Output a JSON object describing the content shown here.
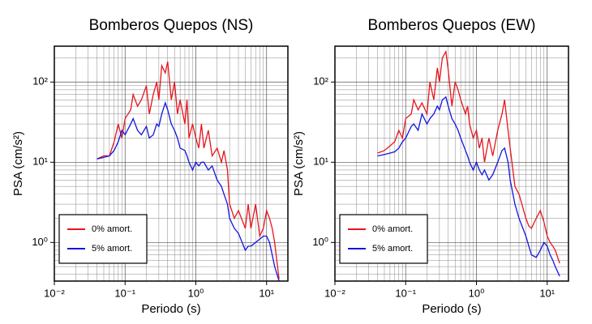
{
  "chart_data": [
    {
      "type": "line",
      "title": "Bomberos Quepos (NS)",
      "x_label": "Periodo (s)",
      "y_label": "PSA (cm/s²)",
      "xlog": true,
      "ylog": true,
      "grid": true,
      "legend": "lower left",
      "xlim": [
        0.01,
        20
      ],
      "ylim": [
        0.33,
        280
      ],
      "xticks": [
        {
          "value": 0.01,
          "label": "10⁻²"
        },
        {
          "value": 0.1,
          "label": "10⁻¹"
        },
        {
          "value": 1,
          "label": "10⁰"
        },
        {
          "value": 10,
          "label": "10¹"
        }
      ],
      "yticks": [
        {
          "value": 1,
          "label": "10⁰"
        },
        {
          "value": 10,
          "label": "10¹"
        },
        {
          "value": 100,
          "label": "10²"
        }
      ],
      "x": [
        0.04,
        0.05,
        0.06,
        0.07,
        0.08,
        0.09,
        0.1,
        0.12,
        0.13,
        0.15,
        0.17,
        0.2,
        0.22,
        0.25,
        0.28,
        0.3,
        0.33,
        0.37,
        0.4,
        0.45,
        0.5,
        0.55,
        0.6,
        0.7,
        0.75,
        0.8,
        0.9,
        1.0,
        1.1,
        1.2,
        1.3,
        1.5,
        1.7,
        2.0,
        2.3,
        2.5,
        2.8,
        3.0,
        3.5,
        4,
        5,
        5.5,
        6,
        7,
        8,
        9,
        10,
        11,
        12,
        13,
        15
      ],
      "series": [
        {
          "name": "0% amort.",
          "color": "#e8141c",
          "values": [
            11,
            12,
            12,
            18,
            30,
            20,
            35,
            45,
            70,
            50,
            60,
            90,
            40,
            70,
            100,
            60,
            160,
            130,
            180,
            60,
            100,
            40,
            60,
            30,
            60,
            20,
            30,
            20,
            15,
            30,
            15,
            25,
            12,
            15,
            10,
            14,
            8,
            3,
            2,
            2.5,
            1.5,
            3,
            1.5,
            3,
            1.2,
            1.5,
            2.5,
            2.0,
            1.5,
            1.0,
            0.35
          ]
        },
        {
          "name": "5% amort.",
          "color": "#1414e0",
          "values": [
            11,
            11.5,
            12,
            14,
            18,
            25,
            22,
            30,
            35,
            25,
            22,
            28,
            20,
            22,
            30,
            28,
            40,
            55,
            45,
            30,
            25,
            20,
            15,
            14,
            12,
            10,
            8,
            10,
            9,
            10,
            10,
            8,
            9,
            6,
            5,
            4,
            3,
            2,
            1.5,
            1.3,
            0.8,
            0.9,
            0.9,
            1.0,
            1.1,
            1.2,
            1.2,
            1.0,
            0.7,
            0.5,
            0.33
          ]
        }
      ]
    },
    {
      "type": "line",
      "title": "Bomberos Quepos (EW)",
      "x_label": "Periodo (s)",
      "y_label": "PSA (cm/s²)",
      "xlog": true,
      "ylog": true,
      "grid": true,
      "legend": "lower left",
      "xlim": [
        0.01,
        20
      ],
      "ylim": [
        0.33,
        280
      ],
      "xticks": [
        {
          "value": 0.01,
          "label": "10⁻²"
        },
        {
          "value": 0.1,
          "label": "10⁻¹"
        },
        {
          "value": 1,
          "label": "10⁰"
        },
        {
          "value": 10,
          "label": "10¹"
        }
      ],
      "yticks": [
        {
          "value": 1,
          "label": "10⁰"
        },
        {
          "value": 10,
          "label": "10¹"
        },
        {
          "value": 100,
          "label": "10²"
        }
      ],
      "x": [
        0.04,
        0.05,
        0.06,
        0.07,
        0.08,
        0.09,
        0.1,
        0.12,
        0.13,
        0.15,
        0.17,
        0.2,
        0.22,
        0.25,
        0.28,
        0.3,
        0.33,
        0.37,
        0.4,
        0.45,
        0.5,
        0.55,
        0.6,
        0.7,
        0.75,
        0.8,
        0.9,
        1.0,
        1.1,
        1.2,
        1.3,
        1.5,
        1.7,
        2.0,
        2.3,
        2.5,
        2.8,
        3.0,
        3.5,
        4,
        5,
        5.5,
        6,
        7,
        8,
        9,
        10,
        11,
        12,
        13,
        15
      ],
      "series": [
        {
          "name": "0% amort.",
          "color": "#e8141c",
          "values": [
            13,
            14,
            16,
            18,
            25,
            20,
            35,
            40,
            60,
            45,
            55,
            40,
            100,
            60,
            150,
            100,
            200,
            240,
            140,
            50,
            100,
            80,
            60,
            40,
            50,
            30,
            20,
            25,
            15,
            20,
            10,
            20,
            12,
            25,
            40,
            60,
            25,
            15,
            5,
            4,
            2,
            1.6,
            1.5,
            2,
            2.5,
            1.8,
            1.2,
            1.0,
            0.9,
            0.8,
            0.55
          ]
        },
        {
          "name": "5% amort.",
          "color": "#1414e0",
          "values": [
            12,
            12.5,
            13,
            13.5,
            15,
            18,
            20,
            28,
            30,
            25,
            40,
            30,
            35,
            40,
            50,
            45,
            60,
            65,
            50,
            35,
            30,
            25,
            20,
            14,
            12,
            10,
            8,
            10,
            8,
            7,
            8,
            6,
            7,
            10,
            14,
            15,
            10,
            6,
            3,
            2,
            1.2,
            0.9,
            0.7,
            0.65,
            0.8,
            1.0,
            0.9,
            0.7,
            0.6,
            0.5,
            0.38
          ]
        }
      ]
    }
  ]
}
